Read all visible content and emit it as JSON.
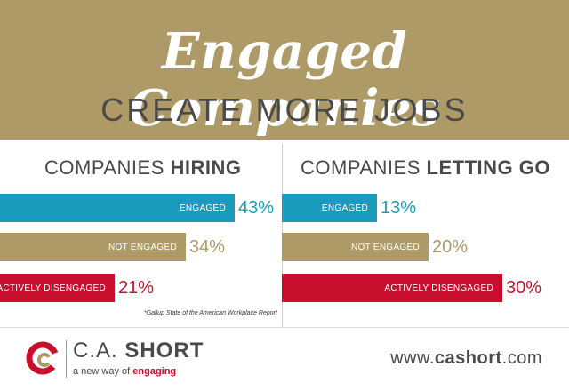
{
  "header": {
    "title": "Engaged Companies",
    "subtitle": "CREATE MORE JOBS"
  },
  "colors": {
    "gold": "#ad9a66",
    "teal": "#1a9bbb",
    "red": "#c8102e",
    "gray_text": "#4a4a4a"
  },
  "chart_data": [
    {
      "type": "bar",
      "title_prefix": "COMPANIES",
      "title_emphasis": "HIRING",
      "categories": [
        "ENGAGED",
        "NOT ENGAGED",
        "ACTIVELY DISENGAGED"
      ],
      "values": [
        43,
        34,
        21
      ],
      "value_labels": [
        "43%",
        "34%",
        "21%"
      ],
      "bar_colors": [
        "#1a9bbb",
        "#ad9a66",
        "#c8102e"
      ],
      "orientation": "horizontal",
      "grid": false
    },
    {
      "type": "bar",
      "title_prefix": "COMPANIES",
      "title_emphasis": "LETTING GO",
      "categories": [
        "ENGAGED",
        "NOT ENGAGED",
        "ACTIVELY DISENGAGED"
      ],
      "values": [
        13,
        20,
        30
      ],
      "value_labels": [
        "13%",
        "20%",
        "30%"
      ],
      "bar_colors": [
        "#1a9bbb",
        "#ad9a66",
        "#c8102e"
      ],
      "orientation": "horizontal",
      "grid": false
    }
  ],
  "footnote": "*Gallup State of the American Workplace Report",
  "footer": {
    "brand_light": "C.A.",
    "brand_bold": "SHORT",
    "tagline_prefix": "a new way of",
    "tagline_emphasis": "engaging",
    "website_prefix": "www.",
    "website_bold": "cashort",
    "website_suffix": ".com"
  }
}
